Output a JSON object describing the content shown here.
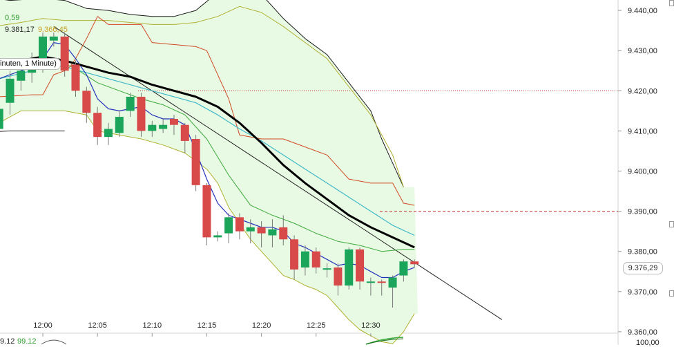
{
  "header": {
    "partial_value": "0,59",
    "close_value": "9.381,17",
    "other_value": "9.366,45",
    "indicator_label": "inuten, 1 Minute)"
  },
  "price_axis": {
    "ticks": [
      "9.440,00",
      "9.430,00",
      "9.420,00",
      "9.410,00",
      "9.400,00",
      "9.390,00",
      "9.380,00",
      "9.370,00",
      "9.360,00"
    ],
    "current_price": "9.376,29"
  },
  "bottom": {
    "left_value": "9.12",
    "green_value": "99.12",
    "right_value": "100,00"
  },
  "colors": {
    "up": "#1aa55a",
    "down": "#d84a4a",
    "band_fill": "#e8fae4",
    "envelope": "#1a1a1a",
    "sma": "#000000",
    "ema_blue": "#2233bb",
    "cyan_ma": "#3fb8c8",
    "green_ma": "#3aaa3a",
    "olive_band": "#b0b030",
    "red_stop": "#d04a22",
    "dotted_level": "#c03030"
  },
  "chart_data": {
    "type": "candlestick",
    "x_ticks": [
      "12:00",
      "12:05",
      "12:10",
      "12:15",
      "12:20",
      "12:25",
      "12:30"
    ],
    "y_range": [
      9360,
      9445
    ],
    "y_tick_step": 10,
    "candles": [
      {
        "t": -4,
        "o": 9410.5,
        "c": 9415.5,
        "h": 9417.0,
        "l": 9408.0
      },
      {
        "t": -3,
        "o": 9417.0,
        "c": 9423.0,
        "h": 9425.0,
        "l": 9414.0
      },
      {
        "t": -2,
        "o": 9422.5,
        "c": 9425.0,
        "h": 9426.5,
        "l": 9420.0
      },
      {
        "t": -1,
        "o": 9424.5,
        "c": 9427.5,
        "h": 9429.5,
        "l": 9422.0
      },
      {
        "t": 0,
        "o": 9426.5,
        "c": 9433.5,
        "h": 9434.5,
        "l": 9424.5
      },
      {
        "t": 1,
        "o": 9432.5,
        "c": 9433.5,
        "h": 9434.5,
        "l": 9431.0
      },
      {
        "t": 2,
        "o": 9433.5,
        "c": 9425.0,
        "h": 9434.5,
        "l": 9423.5
      },
      {
        "t": 3,
        "o": 9426.5,
        "c": 9420.0,
        "h": 9427.5,
        "l": 9418.5
      },
      {
        "t": 4,
        "o": 9420.0,
        "c": 9414.5,
        "h": 9421.0,
        "l": 9412.0
      },
      {
        "t": 5,
        "o": 9414.5,
        "c": 9408.5,
        "h": 9416.0,
        "l": 9406.5
      },
      {
        "t": 6,
        "o": 9408.5,
        "c": 9410.5,
        "h": 9412.0,
        "l": 9406.5
      },
      {
        "t": 7,
        "o": 9409.5,
        "c": 9413.5,
        "h": 9415.0,
        "l": 9408.5
      },
      {
        "t": 8,
        "o": 9415.0,
        "c": 9418.5,
        "h": 9419.5,
        "l": 9413.5
      },
      {
        "t": 9,
        "o": 9418.5,
        "c": 9410.0,
        "h": 9419.5,
        "l": 9408.5
      },
      {
        "t": 10,
        "o": 9410.0,
        "c": 9411.5,
        "h": 9412.5,
        "l": 9408.5
      },
      {
        "t": 11,
        "o": 9410.5,
        "c": 9411.5,
        "h": 9413.0,
        "l": 9409.5
      },
      {
        "t": 12,
        "o": 9413.0,
        "c": 9411.5,
        "h": 9414.0,
        "l": 9409.0
      },
      {
        "t": 13,
        "o": 9411.5,
        "c": 9407.5,
        "h": 9412.0,
        "l": 9404.5
      },
      {
        "t": 14,
        "o": 9408.0,
        "c": 9396.5,
        "h": 9409.0,
        "l": 9395.0
      },
      {
        "t": 15,
        "o": 9396.5,
        "c": 9383.5,
        "h": 9397.0,
        "l": 9381.5
      },
      {
        "t": 16,
        "o": 9383.5,
        "c": 9384.0,
        "h": 9385.0,
        "l": 9382.5
      },
      {
        "t": 17,
        "o": 9384.5,
        "c": 9388.5,
        "h": 9389.5,
        "l": 9382.0
      },
      {
        "t": 18,
        "o": 9388.5,
        "c": 9385.0,
        "h": 9389.5,
        "l": 9383.0
      },
      {
        "t": 19,
        "o": 9385.0,
        "c": 9386.0,
        "h": 9388.0,
        "l": 9382.0
      },
      {
        "t": 20,
        "o": 9386.0,
        "c": 9384.5,
        "h": 9387.5,
        "l": 9381.0
      },
      {
        "t": 21,
        "o": 9384.0,
        "c": 9385.5,
        "h": 9388.0,
        "l": 9381.0
      },
      {
        "t": 22,
        "o": 9386.0,
        "c": 9383.0,
        "h": 9389.0,
        "l": 9381.5
      },
      {
        "t": 23,
        "o": 9383.0,
        "c": 9375.5,
        "h": 9384.0,
        "l": 9373.0
      },
      {
        "t": 24,
        "o": 9376.0,
        "c": 9380.0,
        "h": 9381.5,
        "l": 9374.0
      },
      {
        "t": 25,
        "o": 9380.0,
        "c": 9376.0,
        "h": 9381.0,
        "l": 9374.5
      },
      {
        "t": 26,
        "o": 9375.5,
        "c": 9375.8,
        "h": 9377.0,
        "l": 9373.5
      },
      {
        "t": 27,
        "o": 9376.0,
        "c": 9371.5,
        "h": 9377.0,
        "l": 9369.0
      },
      {
        "t": 28,
        "o": 9371.5,
        "c": 9380.5,
        "h": 9381.0,
        "l": 9370.5
      },
      {
        "t": 29,
        "o": 9380.5,
        "c": 9372.5,
        "h": 9381.0,
        "l": 9370.5
      },
      {
        "t": 30,
        "o": 9372.5,
        "c": 9372.5,
        "h": 9373.5,
        "l": 9369.0
      },
      {
        "t": 31,
        "o": 9372.5,
        "c": 9372.3,
        "h": 9373.0,
        "l": 9369.0
      },
      {
        "t": 32,
        "o": 9371.0,
        "c": 9373.5,
        "h": 9374.0,
        "l": 9366.0
      },
      {
        "t": 33,
        "o": 9374.0,
        "c": 9377.5,
        "h": 9378.0,
        "l": 9372.5
      },
      {
        "t": 34,
        "o": 9377.5,
        "c": 9376.8,
        "h": 9378.0,
        "l": 9376.0
      }
    ],
    "series": [
      {
        "name": "envelope_upper",
        "style": "envelope",
        "points": [
          [
            -7,
            9444
          ],
          [
            -3,
            9442.5
          ],
          [
            0,
            9443
          ],
          [
            2,
            9442.5
          ],
          [
            4,
            9440.5
          ],
          [
            6,
            9440
          ],
          [
            8,
            9439
          ],
          [
            10,
            9438.5
          ],
          [
            12,
            9438.5
          ],
          [
            14,
            9440
          ],
          [
            16,
            9444.5
          ],
          [
            18,
            9445.5
          ],
          [
            20,
            9444
          ],
          [
            22,
            9438
          ],
          [
            24,
            9433
          ],
          [
            26,
            9429
          ],
          [
            28,
            9422
          ],
          [
            30,
            9415
          ],
          [
            31,
            9408
          ],
          [
            32,
            9402
          ],
          [
            33,
            9396
          ]
        ]
      },
      {
        "name": "envelope_lower",
        "style": "envelope",
        "points": [
          [
            -7,
            9409.5
          ],
          [
            -3,
            9410
          ],
          [
            0,
            9410
          ],
          [
            2,
            9410
          ]
        ]
      },
      {
        "name": "band_upper",
        "style": "olive",
        "points": [
          [
            -7,
            9435
          ],
          [
            -2,
            9437
          ],
          [
            0,
            9438
          ],
          [
            2,
            9437.5
          ],
          [
            4,
            9437.5
          ],
          [
            6,
            9437.5
          ],
          [
            8,
            9437
          ],
          [
            10,
            9436.5
          ],
          [
            12,
            9436.5
          ],
          [
            14,
            9437
          ],
          [
            16,
            9438.5
          ],
          [
            18,
            9441
          ],
          [
            20,
            9439.5
          ],
          [
            22,
            9436
          ],
          [
            24,
            9432
          ],
          [
            26,
            9428
          ],
          [
            28,
            9421
          ],
          [
            30,
            9414
          ],
          [
            32,
            9404
          ],
          [
            33,
            9396
          ]
        ]
      },
      {
        "name": "band_lower",
        "style": "olive",
        "points": [
          [
            -7,
            9412
          ],
          [
            -4,
            9412
          ],
          [
            -2,
            9415
          ],
          [
            2,
            9415
          ],
          [
            4,
            9414
          ],
          [
            5,
            9410
          ],
          [
            7,
            9409
          ],
          [
            9,
            9408
          ],
          [
            11,
            9406.5
          ],
          [
            13,
            9404.5
          ],
          [
            15,
            9400.5
          ],
          [
            16,
            9397
          ],
          [
            17,
            9391
          ],
          [
            18,
            9387
          ],
          [
            19,
            9383
          ],
          [
            20,
            9380
          ],
          [
            21,
            9377
          ],
          [
            22,
            9374
          ],
          [
            23,
            9373
          ],
          [
            24,
            9371.5
          ],
          [
            25,
            9370.5
          ],
          [
            26,
            9369
          ],
          [
            27,
            9366
          ],
          [
            28,
            9363
          ],
          [
            29,
            9360.5
          ],
          [
            30,
            9359
          ],
          [
            31,
            9357.5
          ],
          [
            32,
            9357
          ],
          [
            33,
            9360
          ],
          [
            34,
            9364.5
          ]
        ]
      },
      {
        "name": "green_ma",
        "style": "green",
        "points": [
          [
            -7,
            9424
          ],
          [
            -5,
            9425
          ],
          [
            -3,
            9426
          ],
          [
            -1,
            9427
          ],
          [
            1,
            9428
          ],
          [
            3,
            9425.5
          ],
          [
            5,
            9422
          ],
          [
            7,
            9420
          ],
          [
            9,
            9418
          ],
          [
            11,
            9416.5
          ],
          [
            13,
            9414
          ],
          [
            15,
            9408
          ],
          [
            17,
            9399
          ],
          [
            19,
            9391.5
          ],
          [
            21,
            9389
          ],
          [
            23,
            9387
          ],
          [
            25,
            9384.5
          ],
          [
            27,
            9382.5
          ],
          [
            29,
            9381.5
          ],
          [
            31,
            9380
          ],
          [
            33,
            9380.5
          ],
          [
            34,
            9380.5
          ]
        ]
      },
      {
        "name": "cyan_ma",
        "style": "cyan",
        "points": [
          [
            -7,
            9422
          ],
          [
            -4,
            9423
          ],
          [
            -1,
            9425
          ],
          [
            0,
            9426
          ],
          [
            2,
            9426
          ],
          [
            4,
            9424.5
          ],
          [
            6,
            9423
          ],
          [
            8,
            9421.5
          ],
          [
            10,
            9420
          ],
          [
            12,
            9418.5
          ],
          [
            14,
            9417
          ],
          [
            16,
            9414
          ],
          [
            18,
            9410.5
          ],
          [
            20,
            9407.5
          ],
          [
            22,
            9404
          ],
          [
            24,
            9400.5
          ],
          [
            26,
            9397
          ],
          [
            28,
            9393.5
          ],
          [
            30,
            9390
          ],
          [
            32,
            9386.5
          ],
          [
            34,
            9384
          ]
        ]
      },
      {
        "name": "sma_thick",
        "style": "sma",
        "points": [
          [
            -7,
            9427
          ],
          [
            -4,
            9427
          ],
          [
            -2,
            9427.5
          ],
          [
            0,
            9428.5
          ],
          [
            2,
            9427.5
          ],
          [
            4,
            9426
          ],
          [
            6,
            9424.5
          ],
          [
            8,
            9423.5
          ],
          [
            10,
            9421.5
          ],
          [
            12,
            9420
          ],
          [
            14,
            9418.5
          ],
          [
            16,
            9416
          ],
          [
            18,
            9412
          ],
          [
            20,
            9407
          ],
          [
            22,
            9401.5
          ],
          [
            24,
            9397
          ],
          [
            26,
            9393
          ],
          [
            28,
            9389
          ],
          [
            30,
            9386
          ],
          [
            32,
            9383.5
          ],
          [
            34,
            9381
          ]
        ]
      },
      {
        "name": "ema_blue",
        "style": "blue",
        "points": [
          [
            -7,
            9421
          ],
          [
            -5,
            9422
          ],
          [
            -3,
            9424
          ],
          [
            -1,
            9426
          ],
          [
            0,
            9428
          ],
          [
            1,
            9432
          ],
          [
            2,
            9431.5
          ],
          [
            3,
            9428
          ],
          [
            4,
            9424
          ],
          [
            5,
            9418
          ],
          [
            6,
            9415.5
          ],
          [
            7,
            9415
          ],
          [
            8,
            9415.5
          ],
          [
            9,
            9416
          ],
          [
            10,
            9414
          ],
          [
            11,
            9413
          ],
          [
            12,
            9413
          ],
          [
            13,
            9411.5
          ],
          [
            14,
            9405
          ],
          [
            15,
            9398
          ],
          [
            16,
            9392
          ],
          [
            17,
            9389
          ],
          [
            18,
            9388
          ],
          [
            19,
            9387
          ],
          [
            20,
            9386
          ],
          [
            21,
            9386
          ],
          [
            22,
            9385
          ],
          [
            23,
            9382
          ],
          [
            24,
            9381
          ],
          [
            25,
            9379.5
          ],
          [
            26,
            9378
          ],
          [
            27,
            9376.5
          ],
          [
            28,
            9377
          ],
          [
            29,
            9376.5
          ],
          [
            30,
            9375
          ],
          [
            31,
            9373.5
          ],
          [
            32,
            9373.5
          ],
          [
            33,
            9375
          ],
          [
            34,
            9376
          ]
        ]
      },
      {
        "name": "red_stop",
        "style": "red",
        "points": [
          [
            -7,
            9418
          ],
          [
            -1,
            9419
          ],
          [
            0,
            9419
          ],
          [
            1,
            9424
          ],
          [
            2,
            9425
          ],
          [
            2.5,
            9426
          ],
          [
            3,
            9428
          ],
          [
            4,
            9433
          ],
          [
            5,
            9438.5
          ],
          [
            6,
            9436.5
          ],
          [
            9,
            9436.5
          ],
          [
            10,
            9432
          ],
          [
            12,
            9431.5
          ],
          [
            14,
            9431
          ],
          [
            15,
            9430
          ],
          [
            17,
            9418
          ],
          [
            18,
            9409
          ],
          [
            20,
            9408
          ],
          [
            22,
            9408
          ],
          [
            24,
            9406
          ],
          [
            26,
            9404
          ],
          [
            28,
            9398
          ],
          [
            30,
            9397
          ],
          [
            32,
            9397
          ],
          [
            33,
            9392
          ],
          [
            34,
            9391.5
          ]
        ]
      }
    ],
    "trendline": {
      "from": [
        1,
        9436
      ],
      "to": [
        42,
        9363
      ]
    },
    "dotted_levels": [
      9420,
      9390
    ]
  }
}
